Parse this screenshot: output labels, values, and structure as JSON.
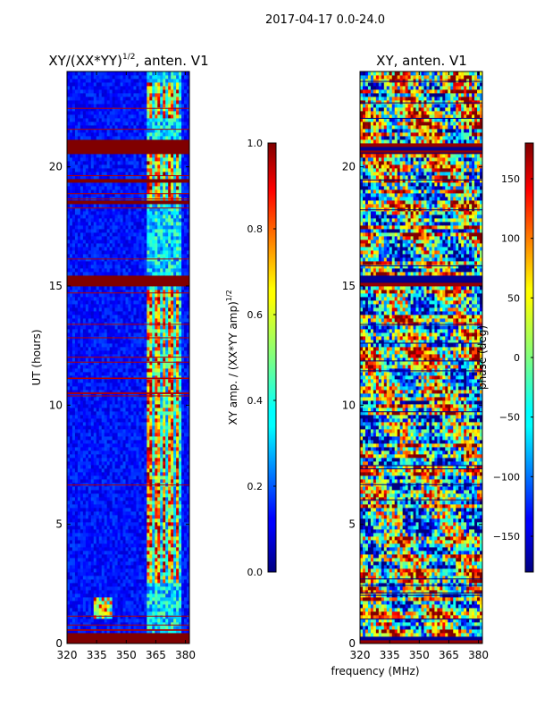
{
  "figure": {
    "suptitle": "2017-04-17 0.0-24.0",
    "xlabel": "frequency (MHz)"
  },
  "chart_data": [
    {
      "type": "heatmap",
      "title_main": "XY/(XX*YY)",
      "title_sup": "1/2",
      "title_tail": ", anten. V1",
      "ylabel": "UT (hours)",
      "xlim": [
        320,
        382
      ],
      "ylim": [
        0,
        24
      ],
      "xticks": [
        "320",
        "335",
        "350",
        "365",
        "380"
      ],
      "yticks": [
        "0",
        "5",
        "10",
        "15",
        "20"
      ],
      "colormap": "jet",
      "colorbar": {
        "label_main": "XY amp. / (XX*YY amp)",
        "label_sup": "1/2",
        "range": [
          0.0,
          1.0
        ],
        "ticks": [
          "0.0",
          "0.2",
          "0.4",
          "0.6",
          "0.8",
          "1.0"
        ]
      },
      "bands_hours": [
        [
          0.0,
          0.45
        ],
        [
          20.6,
          21.1
        ],
        [
          19.3,
          19.5
        ],
        [
          18.4,
          18.6
        ],
        [
          15.0,
          15.5
        ]
      ],
      "bright_channels_mhz": [
        [
          360.5,
          363.0
        ],
        [
          364.5,
          367.0
        ],
        [
          368.5,
          370.5
        ],
        [
          371.5,
          373.5
        ],
        [
          375.0,
          377.0
        ]
      ],
      "bright_rows_hours": [
        [
          2.5,
          14.9
        ],
        [
          18.5,
          20.8
        ],
        [
          22.0,
          23.6
        ]
      ]
    },
    {
      "type": "heatmap",
      "title": "XY, anten. V1",
      "xlim": [
        320,
        382
      ],
      "ylim": [
        0,
        24
      ],
      "xticks": [
        "320",
        "335",
        "350",
        "365",
        "380"
      ],
      "yticks": [
        "0",
        "5",
        "10",
        "15",
        "20"
      ],
      "colormap": "jet",
      "colorbar": {
        "label": "phase (deg)",
        "range": [
          -180,
          180
        ],
        "ticks": [
          "-150",
          "-100",
          "-50",
          "0",
          "50",
          "100",
          "150"
        ]
      },
      "bands_hours": [
        [
          0.0,
          0.3
        ],
        [
          20.6,
          21.0
        ],
        [
          15.0,
          15.4
        ]
      ]
    }
  ]
}
